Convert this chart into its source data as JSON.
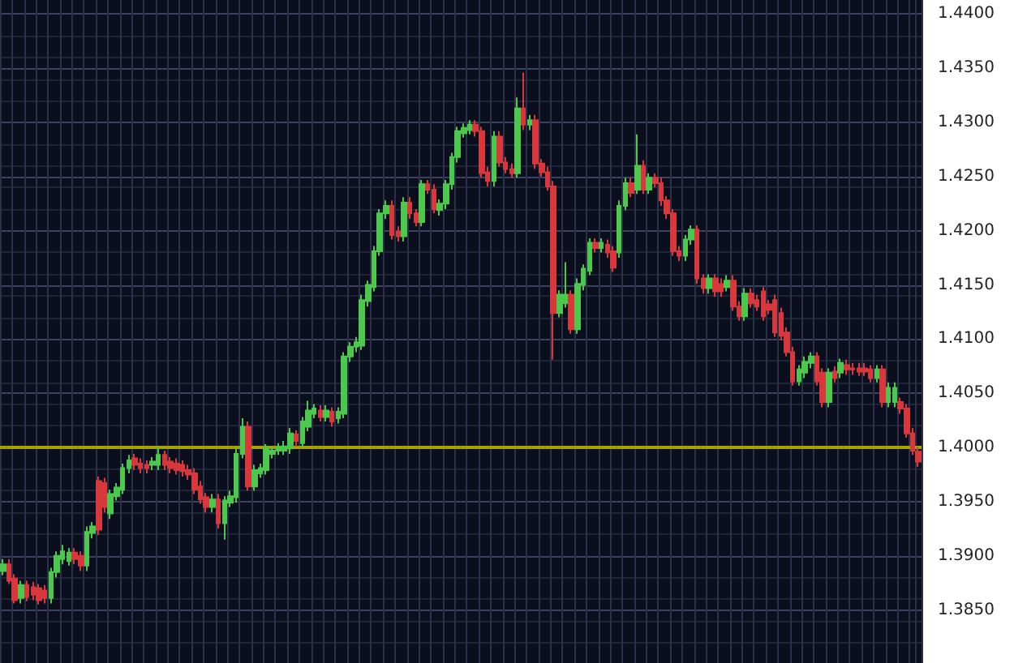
{
  "chart_data": {
    "type": "candlestick",
    "categories": [
      null,
      null,
      null,
      null,
      null,
      null,
      null,
      null,
      null,
      null,
      null,
      null,
      null,
      null,
      null,
      null,
      null,
      null,
      null,
      null,
      null,
      null,
      null,
      null,
      null,
      null,
      null,
      null,
      null,
      null,
      null,
      null,
      null,
      null,
      null,
      null,
      null,
      null,
      null,
      null,
      null,
      null,
      null,
      null,
      null,
      null,
      null,
      null,
      null,
      null,
      null,
      null,
      null,
      null,
      null,
      null,
      null,
      null,
      null,
      null,
      null,
      null,
      null,
      null,
      null,
      null,
      null,
      null,
      null,
      null,
      null,
      null,
      null,
      null,
      null,
      null,
      null,
      null,
      null,
      null,
      null,
      null,
      null,
      null,
      null,
      null,
      null,
      null,
      null,
      null,
      null,
      null,
      null,
      null,
      null,
      null,
      null,
      null,
      null,
      null,
      null,
      null,
      null,
      null,
      null,
      null,
      null,
      null,
      null,
      null,
      null,
      null,
      null,
      null,
      null,
      null,
      null,
      null,
      null,
      null,
      null,
      null,
      null,
      null,
      null,
      null,
      null,
      null,
      null,
      null,
      null,
      null,
      null,
      null,
      null,
      null,
      null,
      null,
      null,
      null,
      null,
      null,
      null,
      null,
      null,
      null,
      null,
      null,
      null,
      null,
      null,
      null,
      null,
      null
    ],
    "ohlc": [
      [
        1.3886,
        1.3897,
        1.3882,
        1.3892
      ],
      [
        1.3892,
        1.3897,
        1.3874,
        1.3877
      ],
      [
        1.3879,
        1.3883,
        1.3856,
        1.3859
      ],
      [
        1.3861,
        1.3877,
        1.3856,
        1.3873
      ],
      [
        1.3873,
        1.3877,
        1.3858,
        1.3862
      ],
      [
        1.3871,
        1.3876,
        1.3859,
        1.3864
      ],
      [
        1.387,
        1.3874,
        1.3855,
        1.3859
      ],
      [
        1.3868,
        1.3873,
        1.3856,
        1.3861
      ],
      [
        1.3861,
        1.3889,
        1.3856,
        1.3885
      ],
      [
        1.3885,
        1.3904,
        1.388,
        1.39
      ],
      [
        1.3897,
        1.391,
        1.3892,
        1.3904
      ],
      [
        1.3895,
        1.3907,
        1.3891,
        1.3903
      ],
      [
        1.3903,
        1.3907,
        1.3892,
        1.3897
      ],
      [
        1.39,
        1.3904,
        1.3886,
        1.3891
      ],
      [
        1.3891,
        1.3927,
        1.3886,
        1.3922
      ],
      [
        1.3921,
        1.3931,
        1.3916,
        1.3927
      ],
      [
        1.3969,
        1.3973,
        1.3919,
        1.3924
      ],
      [
        1.3967,
        1.3972,
        1.394,
        1.3945
      ],
      [
        1.3939,
        1.3961,
        1.3934,
        1.3957
      ],
      [
        1.3955,
        1.3967,
        1.3951,
        1.3963
      ],
      [
        1.3961,
        1.3985,
        1.3957,
        1.3981
      ],
      [
        1.3981,
        1.3993,
        1.3976,
        1.3988
      ],
      [
        1.399,
        1.3994,
        1.3979,
        1.3984
      ],
      [
        1.3985,
        1.399,
        1.3976,
        1.3981
      ],
      [
        1.3984,
        1.3988,
        1.3976,
        1.3981
      ],
      [
        1.3984,
        1.3991,
        1.3979,
        1.3987
      ],
      [
        1.3984,
        1.4001,
        1.3979,
        1.3993
      ],
      [
        1.3993,
        1.3997,
        1.3979,
        1.3984
      ],
      [
        1.3987,
        1.3991,
        1.3976,
        1.3981
      ],
      [
        1.3985,
        1.399,
        1.3975,
        1.3979
      ],
      [
        1.3984,
        1.3988,
        1.3973,
        1.3978
      ],
      [
        1.3979,
        1.3984,
        1.397,
        1.3975
      ],
      [
        1.3976,
        1.3981,
        1.3957,
        1.3961
      ],
      [
        1.3964,
        1.3969,
        1.3948,
        1.3952
      ],
      [
        1.3954,
        1.3958,
        1.394,
        1.3945
      ],
      [
        1.3945,
        1.3957,
        1.394,
        1.3952
      ],
      [
        1.3952,
        1.3957,
        1.3925,
        1.393
      ],
      [
        1.393,
        1.3955,
        1.3915,
        1.3951
      ],
      [
        1.3949,
        1.396,
        1.3945,
        1.3955
      ],
      [
        1.3954,
        1.3999,
        1.3949,
        1.3994
      ],
      [
        1.3994,
        1.4027,
        1.399,
        1.4019
      ],
      [
        1.4019,
        1.4024,
        1.396,
        1.3964
      ],
      [
        1.3964,
        1.3984,
        1.396,
        1.3979
      ],
      [
        1.3976,
        1.3985,
        1.3972,
        1.3981
      ],
      [
        1.3979,
        1.4003,
        1.3975,
        1.3999
      ],
      [
        1.3994,
        1.4001,
        1.399,
        1.3997
      ],
      [
        1.3997,
        1.4004,
        1.3993,
        1.4
      ],
      [
        1.3997,
        1.4006,
        1.3993,
        1.4001
      ],
      [
        1.3999,
        1.4018,
        1.3994,
        1.4013
      ],
      [
        1.4012,
        1.4016,
        1.4001,
        1.4006
      ],
      [
        1.4004,
        1.4028,
        1.4,
        1.4024
      ],
      [
        1.4019,
        1.4043,
        1.4015,
        1.4034
      ],
      [
        1.4031,
        1.404,
        1.4027,
        1.4036
      ],
      [
        1.4034,
        1.4039,
        1.4024,
        1.4028
      ],
      [
        1.4028,
        1.4039,
        1.4024,
        1.4034
      ],
      [
        1.4033,
        1.4037,
        1.4019,
        1.4024
      ],
      [
        1.4027,
        1.4037,
        1.4022,
        1.4033
      ],
      [
        1.4031,
        1.4088,
        1.4027,
        1.4084
      ],
      [
        1.4084,
        1.4097,
        1.4079,
        1.4093
      ],
      [
        1.4093,
        1.4102,
        1.4088,
        1.4097
      ],
      [
        1.4094,
        1.4141,
        1.409,
        1.4136
      ],
      [
        1.4135,
        1.4154,
        1.413,
        1.415
      ],
      [
        1.4148,
        1.4186,
        1.4144,
        1.4181
      ],
      [
        1.4181,
        1.422,
        1.4177,
        1.4216
      ],
      [
        1.4216,
        1.4228,
        1.4211,
        1.4223
      ],
      [
        1.4223,
        1.4228,
        1.4192,
        1.4196
      ],
      [
        1.4199,
        1.4204,
        1.419,
        1.4195
      ],
      [
        1.4195,
        1.4231,
        1.419,
        1.4226
      ],
      [
        1.4226,
        1.4231,
        1.4211,
        1.4216
      ],
      [
        1.4216,
        1.422,
        1.4204,
        1.4208
      ],
      [
        1.4208,
        1.4247,
        1.4204,
        1.4243
      ],
      [
        1.4243,
        1.4247,
        1.4234,
        1.4238
      ],
      [
        1.4238,
        1.4243,
        1.4216,
        1.422
      ],
      [
        1.4219,
        1.4229,
        1.4214,
        1.4225
      ],
      [
        1.4225,
        1.4247,
        1.422,
        1.4243
      ],
      [
        1.4243,
        1.4272,
        1.4238,
        1.4268
      ],
      [
        1.4268,
        1.4296,
        1.4263,
        1.4292
      ],
      [
        1.429,
        1.4299,
        1.4286,
        1.4295
      ],
      [
        1.4293,
        1.4302,
        1.4289,
        1.4298
      ],
      [
        1.4298,
        1.4302,
        1.4287,
        1.4292
      ],
      [
        1.4292,
        1.4296,
        1.4249,
        1.4253
      ],
      [
        1.4254,
        1.4259,
        1.4241,
        1.4246
      ],
      [
        1.4246,
        1.4292,
        1.4241,
        1.4287
      ],
      [
        1.4287,
        1.4292,
        1.4259,
        1.4263
      ],
      [
        1.4263,
        1.4268,
        1.4253,
        1.4257
      ],
      [
        1.4257,
        1.4262,
        1.4249,
        1.4253
      ],
      [
        1.4253,
        1.4323,
        1.4249,
        1.4313
      ],
      [
        1.4313,
        1.4346,
        1.4293,
        1.4298
      ],
      [
        1.4298,
        1.4307,
        1.4293,
        1.4302
      ],
      [
        1.4302,
        1.4307,
        1.4257,
        1.4262
      ],
      [
        1.4262,
        1.4266,
        1.425,
        1.4254
      ],
      [
        1.4254,
        1.4259,
        1.4237,
        1.4241
      ],
      [
        1.4241,
        1.4246,
        1.4081,
        1.4124
      ],
      [
        1.4124,
        1.4145,
        1.412,
        1.4141
      ],
      [
        1.4133,
        1.4171,
        1.4129,
        1.4141
      ],
      [
        1.4141,
        1.4145,
        1.4105,
        1.4109
      ],
      [
        1.4109,
        1.4156,
        1.4105,
        1.4151
      ],
      [
        1.415,
        1.4169,
        1.4145,
        1.4165
      ],
      [
        1.4163,
        1.4193,
        1.4159,
        1.4189
      ],
      [
        1.4189,
        1.4193,
        1.418,
        1.4184
      ],
      [
        1.4184,
        1.4193,
        1.418,
        1.4189
      ],
      [
        1.4187,
        1.4192,
        1.4175,
        1.418
      ],
      [
        1.4181,
        1.4186,
        1.4162,
        1.4166
      ],
      [
        1.418,
        1.4228,
        1.4175,
        1.4223
      ],
      [
        1.4223,
        1.4249,
        1.4219,
        1.4244
      ],
      [
        1.4244,
        1.4249,
        1.4231,
        1.4235
      ],
      [
        1.4238,
        1.4289,
        1.4234,
        1.426
      ],
      [
        1.426,
        1.4265,
        1.4234,
        1.4238
      ],
      [
        1.4238,
        1.4253,
        1.4234,
        1.4249
      ],
      [
        1.4249,
        1.4253,
        1.424,
        1.4244
      ],
      [
        1.4244,
        1.4249,
        1.4223,
        1.4228
      ],
      [
        1.4228,
        1.4232,
        1.4211,
        1.4216
      ],
      [
        1.4216,
        1.422,
        1.4177,
        1.4181
      ],
      [
        1.4181,
        1.4186,
        1.4172,
        1.4177
      ],
      [
        1.4177,
        1.4196,
        1.4172,
        1.4192
      ],
      [
        1.4192,
        1.4205,
        1.4187,
        1.4201
      ],
      [
        1.4201,
        1.4205,
        1.4151,
        1.4156
      ],
      [
        1.4156,
        1.416,
        1.4142,
        1.4147
      ],
      [
        1.4147,
        1.416,
        1.4142,
        1.4156
      ],
      [
        1.4156,
        1.416,
        1.4139,
        1.4144
      ],
      [
        1.4151,
        1.4156,
        1.4139,
        1.4144
      ],
      [
        1.4148,
        1.4159,
        1.4144,
        1.4154
      ],
      [
        1.4154,
        1.4159,
        1.4126,
        1.413
      ],
      [
        1.413,
        1.4135,
        1.4117,
        1.4121
      ],
      [
        1.4121,
        1.4147,
        1.4117,
        1.4142
      ],
      [
        1.4142,
        1.4147,
        1.4129,
        1.4133
      ],
      [
        1.4136,
        1.4141,
        1.4126,
        1.413
      ],
      [
        1.4144,
        1.4148,
        1.4117,
        1.4121
      ],
      [
        1.4132,
        1.4136,
        1.4123,
        1.4127
      ],
      [
        1.4136,
        1.4141,
        1.4102,
        1.4106
      ],
      [
        1.4124,
        1.4129,
        1.4099,
        1.4103
      ],
      [
        1.4106,
        1.4111,
        1.4084,
        1.4088
      ],
      [
        1.4088,
        1.4093,
        1.4057,
        1.4061
      ],
      [
        1.4061,
        1.4076,
        1.4057,
        1.4072
      ],
      [
        1.4069,
        1.4084,
        1.4064,
        1.4079
      ],
      [
        1.4078,
        1.4088,
        1.4073,
        1.4084
      ],
      [
        1.4084,
        1.4088,
        1.4057,
        1.4061
      ],
      [
        1.4069,
        1.4073,
        1.4037,
        1.4042
      ],
      [
        1.4042,
        1.4073,
        1.4037,
        1.4069
      ],
      [
        1.407,
        1.4075,
        1.406,
        1.4064
      ],
      [
        1.4069,
        1.4082,
        1.4064,
        1.4078
      ],
      [
        1.4076,
        1.4081,
        1.4067,
        1.4072
      ],
      [
        1.4073,
        1.4078,
        1.4067,
        1.4072
      ],
      [
        1.4073,
        1.4078,
        1.4066,
        1.407
      ],
      [
        1.4073,
        1.4078,
        1.4066,
        1.407
      ],
      [
        1.4072,
        1.4076,
        1.406,
        1.4064
      ],
      [
        1.4064,
        1.4076,
        1.406,
        1.4072
      ],
      [
        1.4072,
        1.4076,
        1.4037,
        1.4042
      ],
      [
        1.4042,
        1.406,
        1.4037,
        1.4055
      ],
      [
        1.4042,
        1.406,
        1.4037,
        1.4055
      ],
      [
        1.4042,
        1.4046,
        1.4031,
        1.4036
      ],
      [
        1.4036,
        1.404,
        1.4009,
        1.4013
      ],
      [
        1.4013,
        1.4018,
        1.3993,
        1.3997
      ],
      [
        1.3996,
        1.4,
        1.3982,
        1.3987
      ]
    ],
    "colors": [
      "#4cc94c",
      "#d8383c",
      "#d8383c",
      "#4cc94c",
      "#d8383c",
      "#d8383c",
      "#d8383c",
      "#d8383c",
      "#4cc94c",
      "#4cc94c",
      "#4cc94c",
      "#4cc94c",
      "#d8383c",
      "#d8383c",
      "#4cc94c",
      "#4cc94c",
      "#d8383c",
      "#d8383c",
      "#4cc94c",
      "#4cc94c",
      "#4cc94c",
      "#4cc94c",
      "#d8383c",
      "#d8383c",
      "#d8383c",
      "#4cc94c",
      "#4cc94c",
      "#d8383c",
      "#d8383c",
      "#d8383c",
      "#d8383c",
      "#d8383c",
      "#d8383c",
      "#d8383c",
      "#d8383c",
      "#4cc94c",
      "#d8383c",
      "#4cc94c",
      "#4cc94c",
      "#4cc94c",
      "#4cc94c",
      "#d8383c",
      "#4cc94c",
      "#4cc94c",
      "#4cc94c",
      "#4cc94c",
      "#4cc94c",
      "#4cc94c",
      "#4cc94c",
      "#d8383c",
      "#4cc94c",
      "#4cc94c",
      "#4cc94c",
      "#d8383c",
      "#4cc94c",
      "#d8383c",
      "#4cc94c",
      "#4cc94c",
      "#4cc94c",
      "#4cc94c",
      "#4cc94c",
      "#4cc94c",
      "#4cc94c",
      "#4cc94c",
      "#4cc94c",
      "#d8383c",
      "#d8383c",
      "#4cc94c",
      "#d8383c",
      "#d8383c",
      "#4cc94c",
      "#d8383c",
      "#d8383c",
      "#4cc94c",
      "#4cc94c",
      "#4cc94c",
      "#4cc94c",
      "#4cc94c",
      "#4cc94c",
      "#d8383c",
      "#d8383c",
      "#d8383c",
      "#4cc94c",
      "#d8383c",
      "#d8383c",
      "#d8383c",
      "#4cc94c",
      "#d8383c",
      "#4cc94c",
      "#d8383c",
      "#d8383c",
      "#d8383c",
      "#d8383c",
      "#4cc94c",
      "#4cc94c",
      "#d8383c",
      "#4cc94c",
      "#4cc94c",
      "#4cc94c",
      "#d8383c",
      "#4cc94c",
      "#d8383c",
      "#d8383c",
      "#4cc94c",
      "#4cc94c",
      "#d8383c",
      "#4cc94c",
      "#d8383c",
      "#4cc94c",
      "#d8383c",
      "#d8383c",
      "#d8383c",
      "#d8383c",
      "#d8383c",
      "#4cc94c",
      "#4cc94c",
      "#d8383c",
      "#d8383c",
      "#4cc94c",
      "#d8383c",
      "#d8383c",
      "#4cc94c",
      "#d8383c",
      "#d8383c",
      "#4cc94c",
      "#d8383c",
      "#d8383c",
      "#d8383c",
      "#d8383c",
      "#d8383c",
      "#d8383c",
      "#d8383c",
      "#d8383c",
      "#4cc94c",
      "#4cc94c",
      "#4cc94c",
      "#d8383c",
      "#d8383c",
      "#4cc94c",
      "#d8383c",
      "#4cc94c",
      "#d8383c",
      "#d8383c",
      "#d8383c",
      "#d8383c",
      "#d8383c",
      "#4cc94c",
      "#d8383c",
      "#4cc94c",
      "#4cc94c",
      "#d8383c",
      "#d8383c",
      "#d8383c",
      "#d8383c"
    ],
    "ylim": [
      1.3801,
      1.4413
    ],
    "yticks": [
      {
        "value": 1.385,
        "label": "1.3850"
      },
      {
        "value": 1.39,
        "label": "1.3900"
      },
      {
        "value": 1.395,
        "label": "1.3950"
      },
      {
        "value": 1.4,
        "label": "1.4000"
      },
      {
        "value": 1.405,
        "label": "1.4050"
      },
      {
        "value": 1.41,
        "label": "1.4100"
      },
      {
        "value": 1.415,
        "label": "1.4150"
      },
      {
        "value": 1.42,
        "label": "1.4200"
      },
      {
        "value": 1.425,
        "label": "1.4250"
      },
      {
        "value": 1.43,
        "label": "1.4300"
      },
      {
        "value": 1.435,
        "label": "1.4350"
      },
      {
        "value": 1.44,
        "label": "1.4400"
      }
    ],
    "ref_lines": [
      {
        "axis": "y",
        "value": 1.4,
        "color": "#a6a300"
      }
    ],
    "grid": true,
    "tick_labels": "y"
  }
}
